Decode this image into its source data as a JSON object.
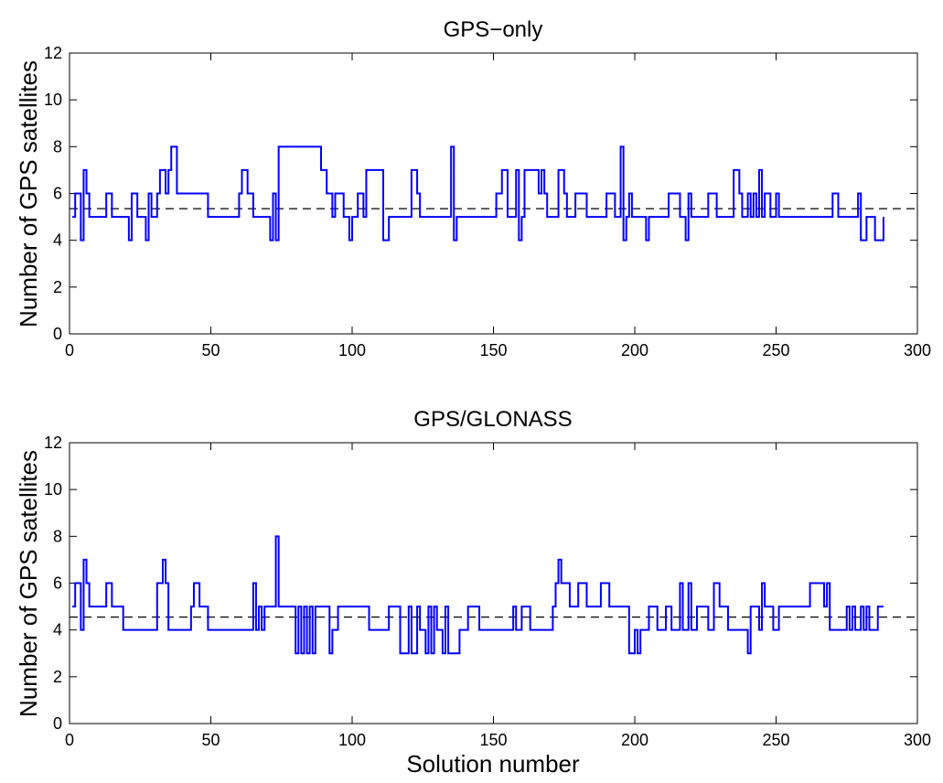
{
  "chart_data": [
    {
      "type": "line",
      "title": "GPS−only",
      "xlabel": "",
      "ylabel": "Number of GPS satellites",
      "xlim": [
        0,
        300
      ],
      "ylim": [
        0,
        12
      ],
      "xticks": [
        "0",
        "50",
        "100",
        "150",
        "200",
        "250",
        "300"
      ],
      "yticks": [
        "0",
        "2",
        "4",
        "6",
        "8",
        "10",
        "12"
      ],
      "grid": false,
      "line_style": "step",
      "series": [
        {
          "color": "#0000ff",
          "x": [
            1,
            2,
            3,
            4,
            5,
            6,
            7,
            13,
            15,
            21,
            22,
            24,
            27,
            28,
            29,
            31,
            32,
            33,
            34,
            35,
            36,
            38,
            49,
            60,
            61,
            63,
            65,
            71,
            72,
            73,
            74,
            89,
            91,
            93,
            94,
            97,
            99,
            100,
            102,
            104,
            105,
            111,
            113,
            121,
            123,
            124,
            135,
            136,
            137,
            151,
            153,
            155,
            157,
            158,
            159,
            160,
            161,
            166,
            167,
            168,
            169,
            173,
            175,
            176,
            179,
            183,
            190,
            193,
            194,
            195,
            196,
            197,
            198,
            199,
            200,
            204,
            205,
            209,
            210,
            212,
            216,
            218,
            219,
            220,
            226,
            229,
            235,
            237,
            238,
            240,
            241,
            242,
            243,
            244,
            245,
            246,
            248,
            250,
            251,
            269,
            270,
            272,
            279,
            280,
            282,
            285,
            288
          ],
          "y": [
            5,
            6,
            6,
            4,
            7,
            6,
            5,
            6,
            5,
            4,
            6,
            5,
            4,
            6,
            5,
            6,
            7,
            7,
            6,
            7,
            8,
            6,
            5,
            6,
            7,
            6,
            5,
            4,
            6,
            4,
            8,
            7,
            6,
            5,
            6,
            5,
            4,
            5,
            6,
            5,
            7,
            4,
            5,
            7,
            6,
            5,
            8,
            4,
            5,
            6,
            7,
            5,
            5,
            7,
            4,
            5,
            7,
            6,
            7,
            6,
            5,
            7,
            6,
            5,
            6,
            5,
            6,
            5,
            5,
            8,
            4,
            5,
            6,
            5,
            5,
            4,
            5,
            5,
            5,
            6,
            5,
            4,
            6,
            5,
            6,
            5,
            7,
            6,
            5,
            6,
            5,
            6,
            5,
            7,
            5,
            6,
            5,
            6,
            5,
            5,
            6,
            5,
            6,
            4,
            5,
            4,
            5
          ]
        }
      ],
      "mean_line": {
        "y": 5.35,
        "style": "dashed",
        "color": "#000000"
      }
    },
    {
      "type": "line",
      "title": "GPS/GLONASS",
      "xlabel": "Solution number",
      "ylabel": "Number of GPS satellites",
      "xlim": [
        0,
        300
      ],
      "ylim": [
        0,
        12
      ],
      "xticks": [
        "0",
        "50",
        "100",
        "150",
        "200",
        "250",
        "300"
      ],
      "yticks": [
        "0",
        "2",
        "4",
        "6",
        "8",
        "10",
        "12"
      ],
      "grid": false,
      "line_style": "step",
      "series": [
        {
          "color": "#0000ff",
          "x": [
            1,
            2,
            3,
            4,
            5,
            6,
            7,
            13,
            15,
            19,
            29,
            31,
            32,
            33,
            34,
            35,
            36,
            42,
            43,
            44,
            46,
            49,
            65,
            66,
            67,
            68,
            69,
            73,
            74,
            75,
            80,
            81,
            82,
            83,
            84,
            85,
            86,
            87,
            92,
            93,
            94,
            95,
            106,
            113,
            117,
            120,
            121,
            123,
            124,
            126,
            127,
            128,
            129,
            130,
            132,
            133,
            134,
            138,
            141,
            145,
            157,
            158,
            160,
            163,
            171,
            172,
            173,
            174,
            175,
            177,
            180,
            183,
            188,
            191,
            198,
            199,
            200,
            201,
            202,
            203,
            205,
            208,
            211,
            213,
            215,
            216,
            217,
            219,
            220,
            222,
            226,
            228,
            229,
            230,
            233,
            240,
            241,
            242,
            244,
            245,
            246,
            249,
            251,
            257,
            262,
            267,
            268,
            269,
            275,
            276,
            277,
            278,
            280,
            281,
            282,
            283,
            286,
            288
          ],
          "y": [
            5,
            6,
            6,
            4,
            7,
            6,
            5,
            6,
            5,
            4,
            4,
            6,
            6,
            7,
            6,
            4,
            4,
            4,
            5,
            6,
            5,
            4,
            6,
            4,
            5,
            4,
            5,
            8,
            5,
            5,
            3,
            5,
            3,
            5,
            3,
            5,
            3,
            5,
            3,
            4,
            4,
            5,
            4,
            5,
            3,
            5,
            3,
            5,
            4,
            3,
            5,
            3,
            5,
            4,
            3,
            5,
            3,
            4,
            5,
            4,
            5,
            4,
            5,
            4,
            5,
            6,
            7,
            6,
            6,
            5,
            6,
            5,
            6,
            5,
            3,
            3,
            4,
            3,
            4,
            4,
            5,
            4,
            5,
            4,
            4,
            6,
            4,
            6,
            4,
            5,
            4,
            6,
            6,
            5,
            4,
            3,
            5,
            5,
            4,
            6,
            5,
            4,
            5,
            5,
            6,
            5,
            6,
            4,
            5,
            4,
            5,
            4,
            5,
            4,
            5,
            4,
            5,
            5
          ],
          "note": ""
        }
      ],
      "mean_line": {
        "y": 4.55,
        "style": "dashed",
        "color": "#000000"
      }
    }
  ]
}
